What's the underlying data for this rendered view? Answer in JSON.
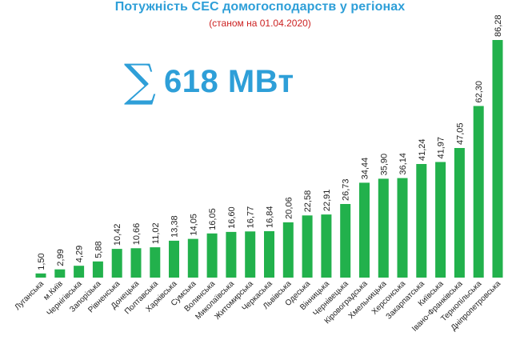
{
  "header": {
    "title": "Потужність СЕС домогосподарств у регіонах",
    "subtitle": "(станом на 01.04.2020)"
  },
  "total": {
    "icon": "sigma-icon",
    "value": "618 МВт"
  },
  "colors": {
    "title": "#2e9fd8",
    "subtitle": "#cc2222",
    "bar": "#22b14c"
  },
  "chart_data": {
    "type": "bar",
    "title": "Потужність СЕС домогосподарств у регіонах",
    "subtitle": "(станом на 01.04.2020)",
    "xlabel": "",
    "ylabel": "",
    "grid": false,
    "legend": "none",
    "categories": [
      "Луганська",
      "м.Київ",
      "Чернігівська",
      "Запорізька",
      "Рівненська",
      "Донецька",
      "Полтавська",
      "Харківська",
      "Сумська",
      "Волинська",
      "Миколаївська",
      "Житомирська",
      "Черкаська",
      "Львівська",
      "Одеська",
      "Вінницька",
      "Чернівецька",
      "Кіровоградська",
      "Хмельницька",
      "Херсонська",
      "Закарпатська",
      "Київська",
      "Івано-Франківська",
      "Тернопільська",
      "Дніпропетровська"
    ],
    "values": [
      1.5,
      2.99,
      4.29,
      5.88,
      10.42,
      10.66,
      11.02,
      13.38,
      14.05,
      16.05,
      16.6,
      16.77,
      16.84,
      20.06,
      22.58,
      22.91,
      26.73,
      34.44,
      35.9,
      36.14,
      41.24,
      41.97,
      47.05,
      62.3,
      86.28
    ],
    "value_labels": [
      "1,50",
      "2,99",
      "4,29",
      "5,88",
      "10,42",
      "10,66",
      "11,02",
      "13,38",
      "14,05",
      "16,05",
      "16,60",
      "16,77",
      "16,84",
      "20,06",
      "22,58",
      "22,91",
      "26,73",
      "34,44",
      "35,90",
      "36,14",
      "41,24",
      "41,97",
      "47,05",
      "62,30",
      "86,28"
    ],
    "ylim": [
      0,
      86.28
    ]
  }
}
